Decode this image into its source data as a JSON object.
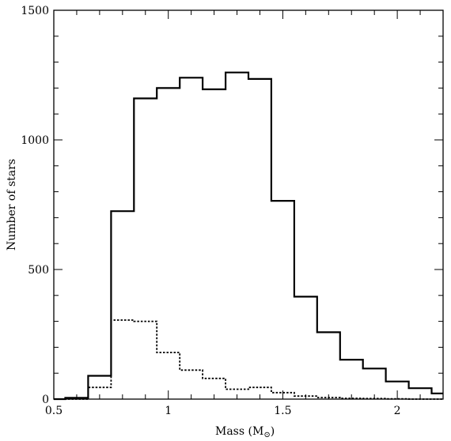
{
  "chart_data": {
    "type": "histogram",
    "xlabel": "Mass (M",
    "xlabel_sub": "⊙",
    "xlabel_close": ")",
    "ylabel": "Number of stars",
    "xlim": [
      0.5,
      2.2
    ],
    "ylim": [
      0,
      1500
    ],
    "xticks": [
      0.5,
      1,
      1.5,
      2
    ],
    "xtick_labels": [
      "0.5",
      "1",
      "1.5",
      "2"
    ],
    "yticks": [
      0,
      500,
      1000,
      1500
    ],
    "ytick_labels": [
      "0",
      "500",
      "1000",
      "1500"
    ],
    "grid": false,
    "bin_edges": [
      0.5,
      0.55,
      0.65,
      0.75,
      0.85,
      0.95,
      1.05,
      1.15,
      1.25,
      1.35,
      1.45,
      1.55,
      1.65,
      1.75,
      1.85,
      1.95,
      2.05,
      2.15,
      2.2
    ],
    "series": [
      {
        "style": "solid",
        "values": [
          0,
          5,
          90,
          725,
          1160,
          1200,
          1240,
          1195,
          1260,
          1235,
          765,
          395,
          258,
          152,
          118,
          68,
          42,
          22
        ]
      },
      {
        "style": "dotted",
        "values": [
          0,
          0,
          45,
          305,
          300,
          180,
          112,
          80,
          38,
          45,
          25,
          12,
          6,
          3,
          2,
          1,
          0,
          0
        ]
      }
    ]
  }
}
